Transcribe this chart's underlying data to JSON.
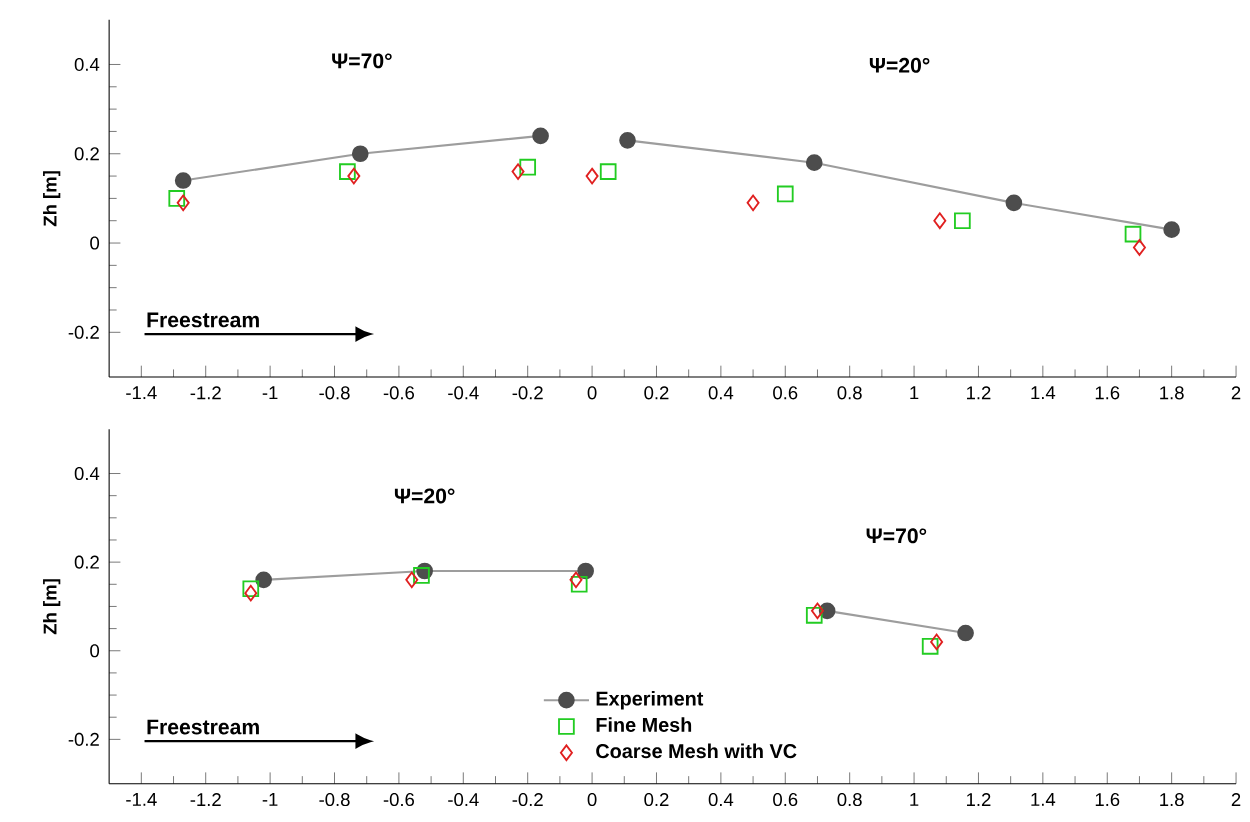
{
  "chart_data": [
    {
      "type": "line",
      "xlim": [
        -1.5,
        2
      ],
      "ylim": [
        -0.3,
        0.5
      ],
      "xticks": [
        -1.4,
        -1.2,
        -1,
        -0.8,
        -0.6,
        -0.4,
        -0.2,
        0,
        0.2,
        0.4,
        0.6,
        0.8,
        1,
        1.2,
        1.4,
        1.6,
        1.8,
        2
      ],
      "yticks": [
        -0.2,
        0,
        0.2,
        0.4
      ],
      "ylabel": "Zh [m]",
      "legend": false,
      "annotations": [
        "Ψ=70°",
        "Ψ=20°",
        "Freestream"
      ],
      "series": [
        {
          "color": "#4d4d4d",
          "marker": "circle",
          "line_style": "solid",
          "x": [
            -1.27,
            -0.72,
            -0.16,
            null,
            0.11,
            0.69,
            1.31,
            1.8
          ],
          "values": [
            0.14,
            0.2,
            0.24,
            null,
            0.23,
            0.18,
            0.09,
            0.03
          ]
        },
        {
          "type": "scatter",
          "color": "#22cc22",
          "marker": "square",
          "x": [
            -1.29,
            -0.76,
            -0.2,
            0.05,
            0.6,
            1.15,
            1.68
          ],
          "values": [
            0.1,
            0.16,
            0.17,
            0.16,
            0.11,
            0.05,
            0.02
          ]
        },
        {
          "type": "scatter",
          "color": "#e02020",
          "marker": "diamond",
          "x": [
            -1.27,
            -0.74,
            -0.23,
            0.0,
            0.5,
            1.08,
            1.7
          ],
          "values": [
            0.09,
            0.15,
            0.16,
            0.15,
            0.09,
            0.05,
            -0.01
          ]
        }
      ]
    },
    {
      "type": "line",
      "xlim": [
        -1.5,
        2
      ],
      "ylim": [
        -0.3,
        0.5
      ],
      "xticks": [
        -1.4,
        -1.2,
        -1,
        -0.8,
        -0.6,
        -0.4,
        -0.2,
        0,
        0.2,
        0.4,
        0.6,
        0.8,
        1,
        1.2,
        1.4,
        1.6,
        1.8,
        2
      ],
      "yticks": [
        -0.2,
        0,
        0.2,
        0.4
      ],
      "ylabel": "Zh [m]",
      "legend": "bottom",
      "annotations": [
        "Ψ=20°",
        "Ψ=70°",
        "Freestream"
      ],
      "series": [
        {
          "name": "Experiment",
          "color": "#4d4d4d",
          "marker": "circle",
          "line_style": "solid",
          "x": [
            -1.02,
            -0.52,
            -0.02,
            null,
            0.73,
            1.16
          ],
          "values": [
            0.16,
            0.18,
            0.18,
            null,
            0.09,
            0.04
          ]
        },
        {
          "type": "scatter",
          "name": "Fine Mesh",
          "color": "#22cc22",
          "marker": "square",
          "x": [
            -1.06,
            -0.53,
            -0.04,
            0.69,
            1.05
          ],
          "values": [
            0.14,
            0.17,
            0.15,
            0.08,
            0.01
          ]
        },
        {
          "type": "scatter",
          "name": "Coarse Mesh with VC",
          "color": "#e02020",
          "marker": "diamond",
          "x": [
            -1.06,
            -0.56,
            -0.05,
            0.7,
            1.07
          ],
          "values": [
            0.13,
            0.16,
            0.16,
            0.09,
            0.02
          ]
        }
      ]
    }
  ]
}
